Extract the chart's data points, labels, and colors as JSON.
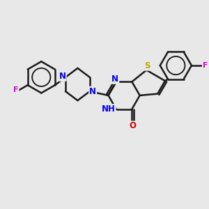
{
  "bg_color": "#e8e8e8",
  "bond_color": "#1a1a1a",
  "bond_width": 1.8,
  "N_color": "#0000ee",
  "O_color": "#cc0000",
  "S_color": "#bbaa00",
  "F_color": "#dd00dd",
  "fig_size": [
    3.0,
    3.0
  ],
  "dpi": 100,
  "xlim": [
    0,
    10
  ],
  "ylim": [
    0,
    10
  ]
}
